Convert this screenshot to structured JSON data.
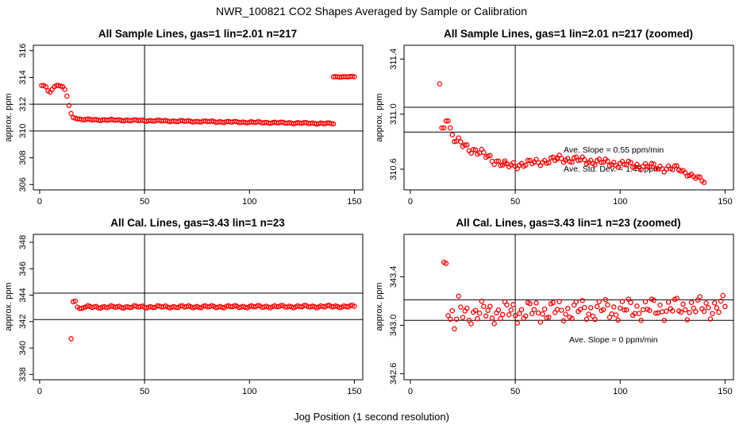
{
  "figure": {
    "title": "NWR_100821  CO2 Shapes Averaged by Sample or Calibration",
    "xlabel": "Jog Position (1 second resolution)"
  },
  "chart_data": [
    {
      "type": "scatter",
      "title": "All Sample Lines, gas=1 lin=2.01 n=217",
      "ylabel": "approx. ppm",
      "xlim": [
        -3,
        154
      ],
      "ylim": [
        305.6,
        316.4
      ],
      "xticks": [
        0,
        50,
        100,
        150
      ],
      "yticks": [
        306,
        308,
        310,
        312,
        314,
        316
      ],
      "hlines": [
        312,
        310
      ],
      "vlines": [
        50
      ],
      "color": "#ff0000",
      "annotations": [],
      "segments": [
        {
          "x_start": 1,
          "values": [
            313.4,
            313.4,
            313.3,
            313.0,
            312.9,
            313.1,
            313.3,
            313.4,
            313.4,
            313.35,
            313.3,
            313.1,
            312.6,
            311.9,
            311.3,
            311.0,
            310.95,
            310.9,
            310.9,
            310.85
          ]
        },
        {
          "x_start": 21,
          "x_end": 140,
          "start": 310.85,
          "end": 310.55,
          "wobble": 0.06
        },
        {
          "x_start": 140,
          "x_end": 150,
          "start": 314.05,
          "end": 314.05,
          "wobble": 0.03
        }
      ]
    },
    {
      "type": "scatter",
      "title": "All Sample Lines, gas=1 lin=2.01 n=217 (zoomed)",
      "ylabel": "approx. ppm",
      "xlim": [
        -3,
        154
      ],
      "ylim": [
        310.45,
        311.5
      ],
      "xticks": [
        0,
        50,
        100,
        150
      ],
      "yticks": [
        310.6,
        311.0,
        311.4
      ],
      "ytick_labels": [
        "310.6",
        "311.0",
        "311.4"
      ],
      "hlines": [
        311.05,
        310.87
      ],
      "vlines": [
        50
      ],
      "color": "#ff0000",
      "annotations": [
        "Ave. Slope =  0.55  ppm/min",
        "Ave. Std. Dev. =  1.45  ppm"
      ],
      "segments": [
        {
          "x_start": 14,
          "values": [
            311.22,
            310.9,
            310.9,
            310.95,
            310.95,
            310.9,
            310.85,
            310.8
          ]
        },
        {
          "x_start": 22,
          "x_end": 45,
          "start": 310.8,
          "end": 310.63,
          "wobble": 0.035
        },
        {
          "x_start": 45,
          "x_end": 70,
          "start": 310.62,
          "end": 310.67,
          "wobble": 0.03
        },
        {
          "x_start": 70,
          "x_end": 128,
          "start": 310.68,
          "end": 310.6,
          "wobble": 0.03
        },
        {
          "x_start": 128,
          "x_end": 140,
          "start": 310.6,
          "end": 310.51,
          "wobble": 0.02
        }
      ]
    },
    {
      "type": "scatter",
      "title": "All Cal. Lines, gas=3.43 lin=1 n=23",
      "ylabel": "approx. ppm",
      "xlim": [
        -3,
        154
      ],
      "ylim": [
        337.6,
        348.6
      ],
      "xticks": [
        0,
        50,
        100,
        150
      ],
      "yticks": [
        338,
        340,
        342,
        344,
        346,
        348
      ],
      "hlines": [
        344.15,
        342.15
      ],
      "vlines": [
        50
      ],
      "color": "#ff0000",
      "annotations": [],
      "segments": [
        {
          "x_start": 15,
          "values": [
            340.7,
            343.5,
            343.55,
            343.1,
            343.0,
            343.0
          ]
        },
        {
          "x_start": 21,
          "x_end": 150,
          "start": 343.1,
          "end": 343.15,
          "wobble": 0.1
        }
      ]
    },
    {
      "type": "scatter",
      "title": "All Cal. Lines, gas=3.43 lin=1 n=23 (zoomed)",
      "ylabel": "approx. ppm",
      "xlim": [
        -3,
        154
      ],
      "ylim": [
        342.55,
        343.75
      ],
      "xticks": [
        0,
        50,
        100,
        150
      ],
      "yticks": [
        342.6,
        343.0,
        343.4
      ],
      "ytick_labels": [
        "342.6",
        "343.0",
        "343.4"
      ],
      "hlines": [
        343.21,
        343.04
      ],
      "vlines": [
        50
      ],
      "color": "#ff0000",
      "annotations": [
        "Ave. Slope =  0  ppm/min"
      ],
      "segments": [
        {
          "x_start": 16,
          "values": [
            343.52,
            343.51,
            343.08,
            343.05,
            343.12,
            342.97,
            343.05,
            343.24,
            343.15
          ]
        },
        {
          "x_start": 25,
          "x_end": 150,
          "start": 343.1,
          "end": 343.15,
          "wobble": 0.1
        }
      ]
    }
  ]
}
